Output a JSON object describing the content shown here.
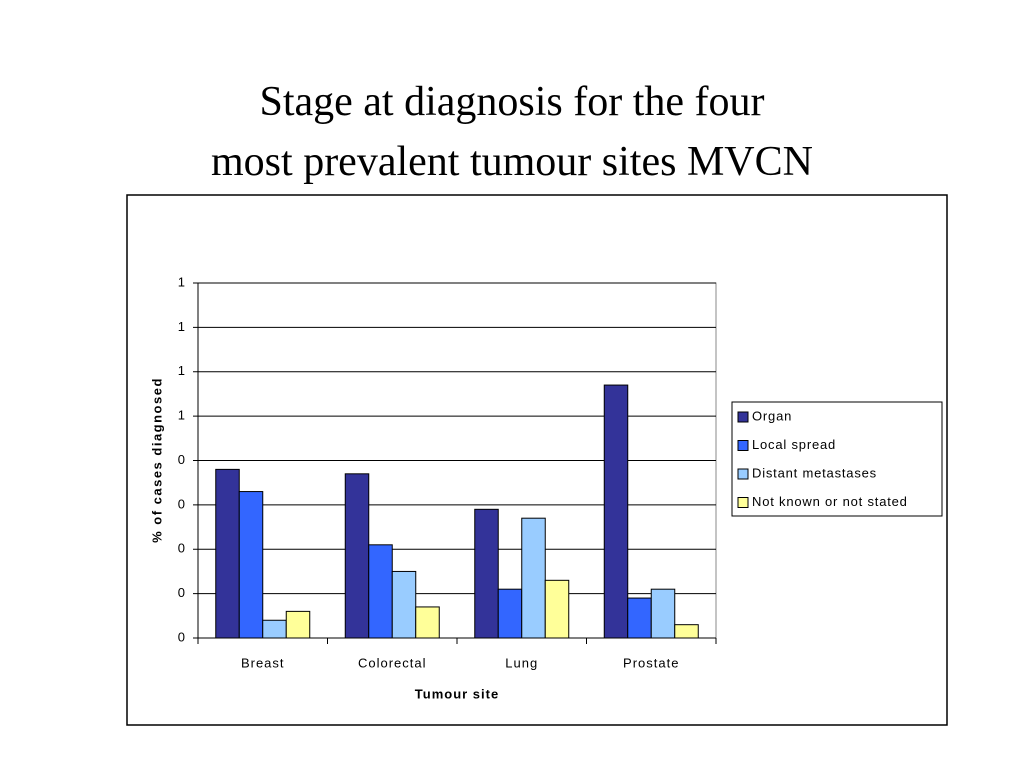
{
  "chart_data": {
    "type": "bar",
    "title": "Stage at diagnosis for the four most prevalent tumour sites MVCN",
    "xlabel": "Tumour site",
    "ylabel": "% of cases diagnosed",
    "categories": [
      "Breast",
      "Colorectal",
      "Lung",
      "Prostate"
    ],
    "series": [
      {
        "name": "Organ",
        "color": "#333399",
        "values": [
          0.38,
          0.37,
          0.29,
          0.57
        ]
      },
      {
        "name": "Local spread",
        "color": "#3366ff",
        "values": [
          0.33,
          0.21,
          0.11,
          0.09
        ]
      },
      {
        "name": "Distant metastases",
        "color": "#99ccff",
        "values": [
          0.04,
          0.15,
          0.27,
          0.11
        ]
      },
      {
        "name": "Not known or not stated",
        "color": "#ffff99",
        "values": [
          0.06,
          0.07,
          0.13,
          0.03
        ]
      }
    ],
    "ylim": [
      0,
      0.8
    ],
    "yticks": [
      0,
      {
        "value": 0.1,
        "label": "0"
      },
      {
        "value": 0.2,
        "label": "0"
      },
      {
        "value": 0.3,
        "label": "0"
      },
      {
        "value": 0.4,
        "label": "0"
      },
      {
        "value": 0.5,
        "label": "1"
      },
      {
        "value": 0.6,
        "label": "1"
      },
      {
        "value": 0.7,
        "label": "1"
      },
      {
        "value": 0.8,
        "label": "1"
      }
    ],
    "grid": true,
    "legend": "right"
  }
}
